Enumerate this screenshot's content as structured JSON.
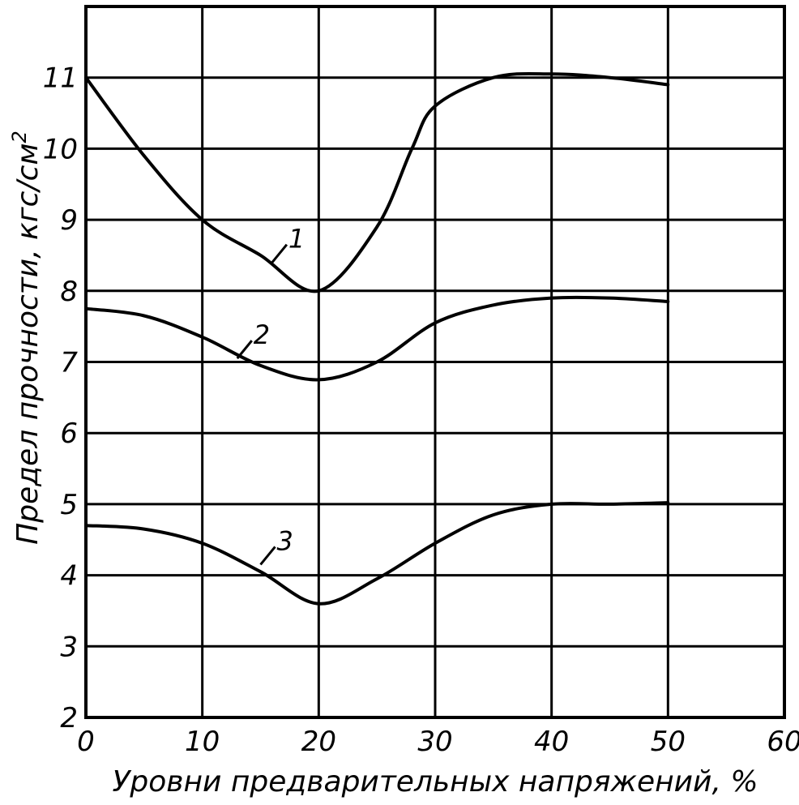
{
  "chart_data": {
    "type": "line",
    "xlabel": "Уровни предварительных напряжений, %",
    "ylabel": "Предел прочности, кгс/см",
    "ylabel_sup": "2",
    "xlim": [
      0,
      60
    ],
    "ylim": [
      2,
      12
    ],
    "x_ticks": [
      "0",
      "10",
      "20",
      "30",
      "40",
      "50",
      "60"
    ],
    "y_ticks": [
      "2",
      "3",
      "4",
      "5",
      "6",
      "7",
      "8",
      "9",
      "10",
      "11"
    ],
    "grid": true,
    "series": [
      {
        "name": "1",
        "x": [
          0,
          5,
          10,
          15,
          20,
          25,
          28,
          30,
          35,
          40,
          45,
          50
        ],
        "y": [
          11.0,
          9.9,
          9.0,
          8.5,
          8.0,
          8.9,
          10.0,
          10.6,
          11.0,
          11.05,
          11.0,
          10.9
        ]
      },
      {
        "name": "2",
        "x": [
          0,
          5,
          10,
          15,
          20,
          25,
          30,
          35,
          40,
          45,
          50
        ],
        "y": [
          7.75,
          7.65,
          7.35,
          6.95,
          6.75,
          7.0,
          7.55,
          7.8,
          7.9,
          7.9,
          7.85
        ]
      },
      {
        "name": "3",
        "x": [
          0,
          5,
          10,
          15,
          20,
          25,
          30,
          35,
          40,
          45,
          50
        ],
        "y": [
          4.7,
          4.65,
          4.45,
          4.05,
          3.6,
          3.95,
          4.45,
          4.85,
          5.0,
          5.0,
          5.02
        ]
      }
    ]
  }
}
